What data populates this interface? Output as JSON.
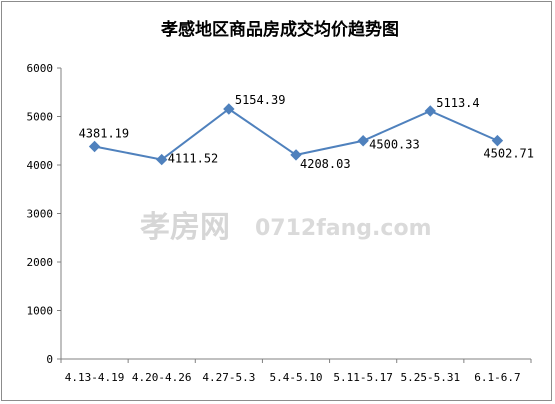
{
  "chart_data": {
    "type": "line",
    "title": "孝感地区商品房成交均价趋势图",
    "categories": [
      "4.13-4.19",
      "4.20-4.26",
      "4.27-5.3",
      "5.4-5.10",
      "5.11-5.17",
      "5.25-5.31",
      "6.1-6.7"
    ],
    "category_labels": [
      "4.13-4.19",
      "4.20-4.26",
      "4.27-5.3",
      "5.4-5.10",
      "5.11-5.17",
      "5.25-5.31",
      "6.1-6.7"
    ],
    "series": [
      {
        "values": [
          4381.19,
          4111.52,
          5154.39,
          4208.03,
          4500.33,
          5113.4,
          4502.71
        ],
        "data_labels": [
          "4381.19",
          "4111.52",
          "5154.39",
          "4208.03",
          "4500.33",
          "5113.4",
          "4502.71"
        ],
        "color": "#4f81bd",
        "marker": "diamond"
      }
    ],
    "ylim": [
      0,
      6000
    ],
    "yticks": [
      0,
      1000,
      2000,
      3000,
      4000,
      5000,
      6000
    ],
    "grid": false,
    "legend": "none"
  },
  "watermark": {
    "text_cn": "孝房网",
    "text_en": "0712fang.com"
  }
}
